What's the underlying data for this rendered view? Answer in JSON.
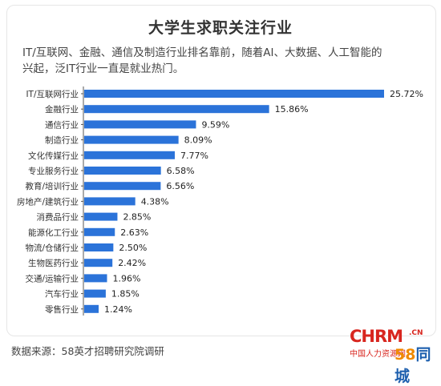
{
  "chart_data": {
    "type": "bar",
    "orientation": "horizontal",
    "title": "大学生求职关注行业",
    "subtitle_lines": [
      "IT/互联网、金融、通信及制造行业排名靠前，随着AI、大数据、人工智能的",
      "兴起，泛IT行业一直是就业热门。"
    ],
    "categories": [
      "IT/互联网行业",
      "金融行业",
      "通信行业",
      "制造行业",
      "文化传媒行业",
      "专业服务行业",
      "教育/培训行业",
      "房地产/建筑行业",
      "消费品行业",
      "能源化工行业",
      "物流/仓储行业",
      "生物医药行业",
      "交通/运输行业",
      "汽车行业",
      "零售行业"
    ],
    "values": [
      25.72,
      15.86,
      9.59,
      8.09,
      7.77,
      6.58,
      6.56,
      4.38,
      2.85,
      2.63,
      2.5,
      2.42,
      1.96,
      1.85,
      1.24
    ],
    "value_labels": [
      "25.72%",
      "15.86%",
      "9.59%",
      "8.09%",
      "7.77%",
      "6.58%",
      "6.56%",
      "4.38%",
      "2.85%",
      "2.63%",
      "2.50%",
      "2.42%",
      "1.96%",
      "1.85%",
      "1.24%"
    ],
    "unit": "%",
    "bar_color": "#2b73d9",
    "grid": false,
    "xlim": [
      0,
      25.72
    ]
  },
  "footer": {
    "source": "数据来源：58英才招聘研究院调研"
  },
  "watermark": {
    "brand": "CHRM",
    "tld": ".CN",
    "tagline": "中国人力资源网",
    "partner_58": "58",
    "partner_text": "同城"
  }
}
